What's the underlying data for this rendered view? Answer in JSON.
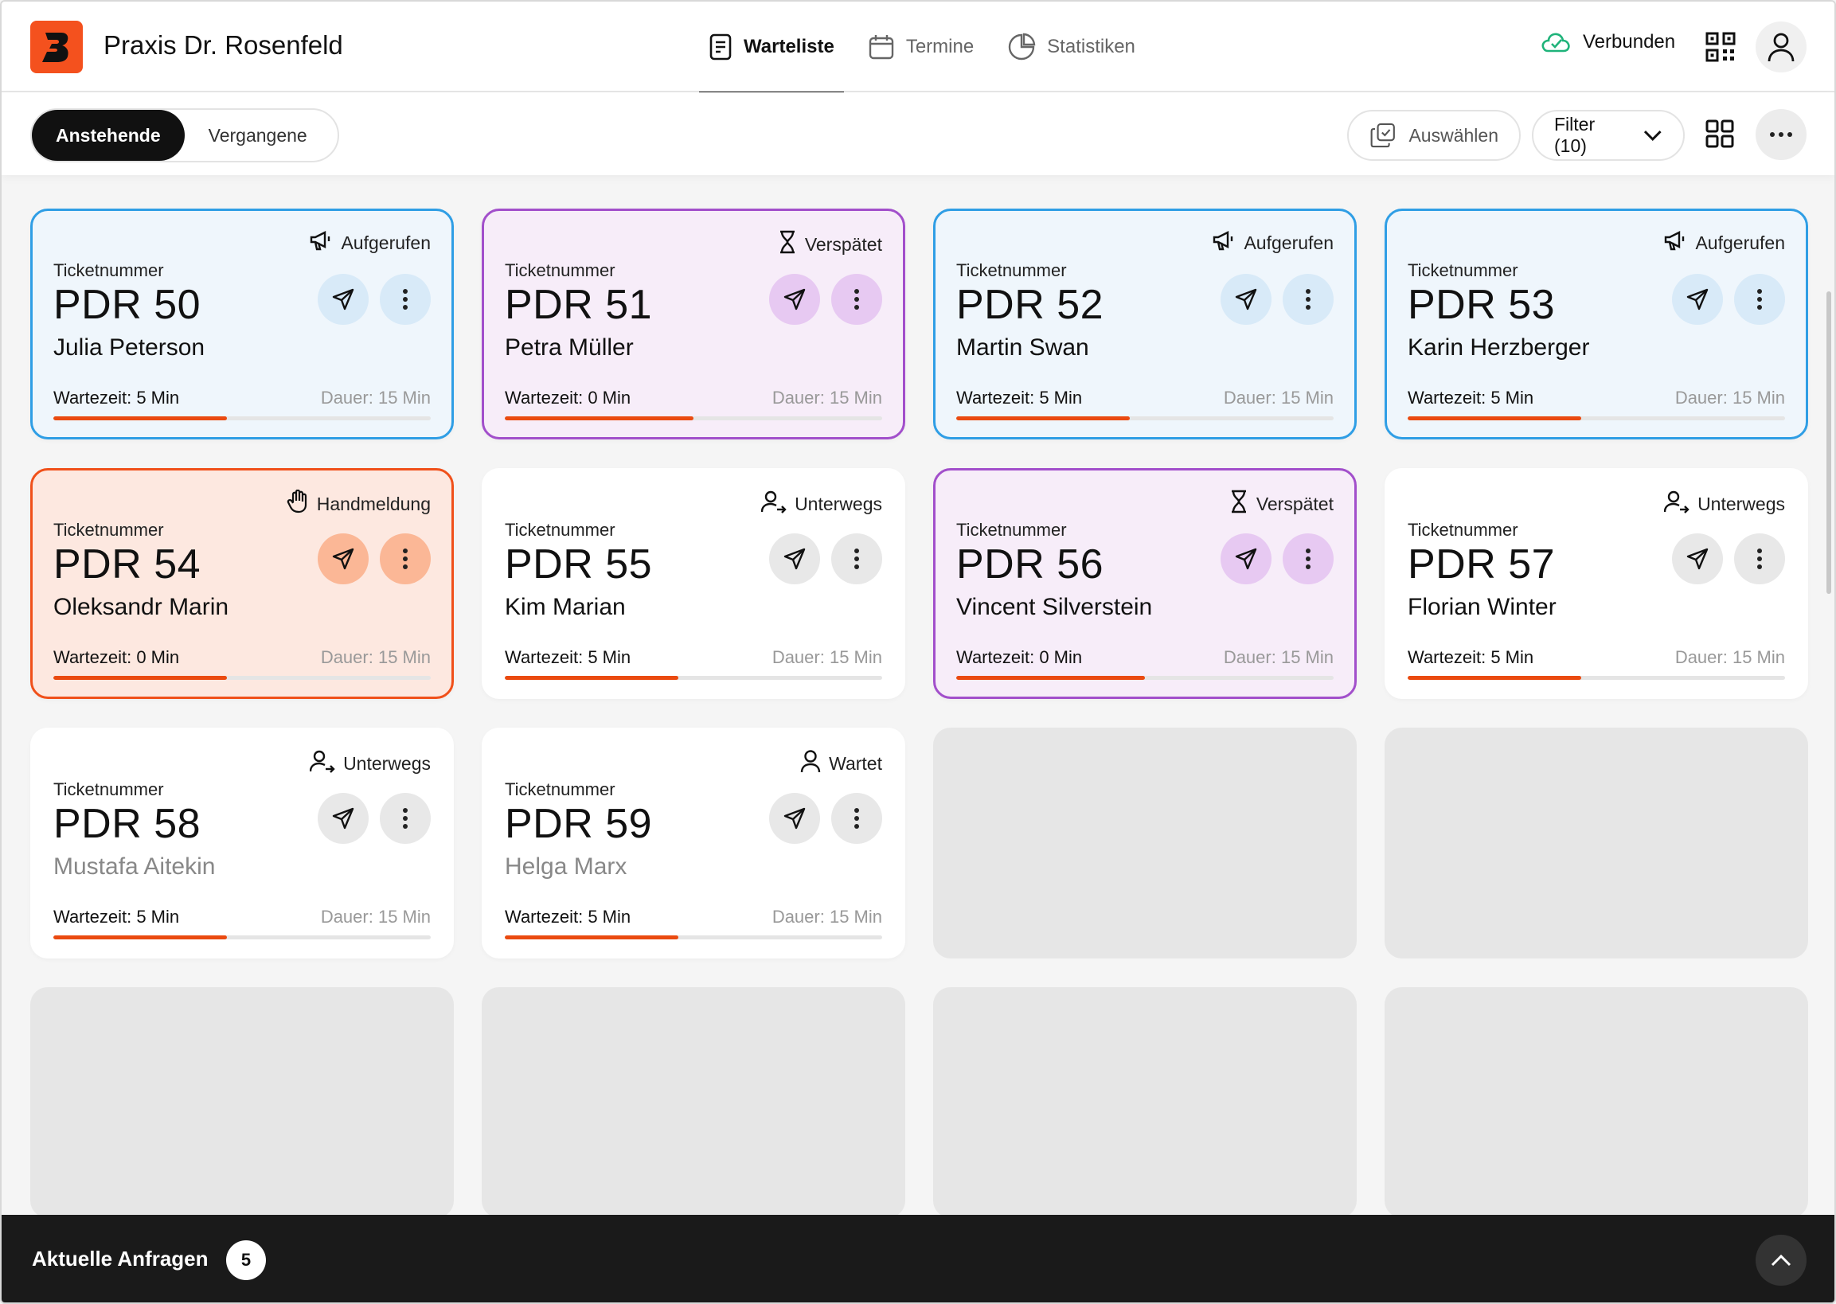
{
  "header": {
    "title": "Praxis Dr. Rosenfeld",
    "nav": [
      {
        "label": "Warteliste",
        "active": true
      },
      {
        "label": "Termine",
        "active": false
      },
      {
        "label": "Statistiken",
        "active": false
      }
    ],
    "connection_label": "Verbunden",
    "brand_color": "#f4511e",
    "connection_color": "#1fb37a"
  },
  "toolbar": {
    "segments": [
      "Anstehende",
      "Vergangene"
    ],
    "select_label": "Auswählen",
    "filter_label": "Filter (10)"
  },
  "cards": [
    {
      "label": "Ticketnummer",
      "number": "PDR 50",
      "name": "Julia Peterson",
      "status": "Aufgerufen",
      "status_icon": "megaphone-icon",
      "wait": "Wartezeit: 5 Min",
      "duration": "Dauer: 15 Min",
      "progress": 0.46,
      "variant": "blue",
      "muted": false
    },
    {
      "label": "Ticketnummer",
      "number": "PDR 51",
      "name": "Petra Müller",
      "status": "Verspätet",
      "status_icon": "hourglass-icon",
      "wait": "Wartezeit: 0 Min",
      "duration": "Dauer: 15 Min",
      "progress": 0.5,
      "variant": "purple",
      "muted": false
    },
    {
      "label": "Ticketnummer",
      "number": "PDR 52",
      "name": "Martin Swan",
      "status": "Aufgerufen",
      "status_icon": "megaphone-icon",
      "wait": "Wartezeit: 5 Min",
      "duration": "Dauer: 15 Min",
      "progress": 0.46,
      "variant": "blue",
      "muted": false
    },
    {
      "label": "Ticketnummer",
      "number": "PDR 53",
      "name": "Karin Herzberger",
      "status": "Aufgerufen",
      "status_icon": "megaphone-icon",
      "wait": "Wartezeit: 5 Min",
      "duration": "Dauer: 15 Min",
      "progress": 0.46,
      "variant": "blue",
      "muted": false
    },
    {
      "label": "Ticketnummer",
      "number": "PDR 54",
      "name": "Oleksandr Marin",
      "status": "Handmeldung",
      "status_icon": "hand-icon",
      "wait": "Wartezeit: 0 Min",
      "duration": "Dauer: 15 Min",
      "progress": 0.46,
      "variant": "orange",
      "muted": false
    },
    {
      "label": "Ticketnummer",
      "number": "PDR 55",
      "name": "Kim Marian",
      "status": "Unterwegs",
      "status_icon": "user-arrow-icon",
      "wait": "Wartezeit: 5 Min",
      "duration": "Dauer: 15 Min",
      "progress": 0.46,
      "variant": "white",
      "muted": false
    },
    {
      "label": "Ticketnummer",
      "number": "PDR 56",
      "name": "Vincent Silverstein",
      "status": "Verspätet",
      "status_icon": "hourglass-icon",
      "wait": "Wartezeit: 0 Min",
      "duration": "Dauer: 15 Min",
      "progress": 0.5,
      "variant": "purple",
      "muted": false
    },
    {
      "label": "Ticketnummer",
      "number": "PDR 57",
      "name": "Florian Winter",
      "status": "Unterwegs",
      "status_icon": "user-arrow-icon",
      "wait": "Wartezeit: 5 Min",
      "duration": "Dauer: 15 Min",
      "progress": 0.46,
      "variant": "white",
      "muted": false
    },
    {
      "label": "Ticketnummer",
      "number": "PDR 58",
      "name": "Mustafa Aitekin",
      "status": "Unterwegs",
      "status_icon": "user-arrow-icon",
      "wait": "Wartezeit: 5 Min",
      "duration": "Dauer: 15 Min",
      "progress": 0.46,
      "variant": "white",
      "muted": true
    },
    {
      "label": "Ticketnummer",
      "number": "PDR 59",
      "name": "Helga Marx",
      "status": "Wartet",
      "status_icon": "user-icon",
      "wait": "Wartezeit: 5 Min",
      "duration": "Dauer: 15 Min",
      "progress": 0.46,
      "variant": "white",
      "muted": true
    }
  ],
  "empty_slots": 6,
  "bottom_bar": {
    "label": "Aktuelle Anfragen",
    "count": "5"
  }
}
